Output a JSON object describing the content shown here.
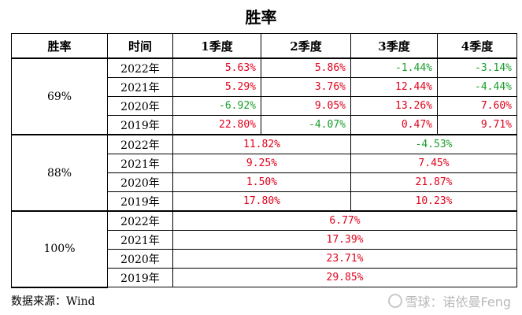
{
  "title": "胜率",
  "headers": [
    "胜率",
    "时间",
    "1季度",
    "2季度",
    "3季度",
    "4季度"
  ],
  "groups": [
    {
      "rate": "69%",
      "rows": [
        {
          "year": "2022年",
          "q": [
            "5.63%",
            "5.86%",
            "-1.44%",
            "-3.14%"
          ]
        },
        {
          "year": "2021年",
          "q": [
            "5.29%",
            "3.76%",
            "12.44%",
            "-4.44%"
          ]
        },
        {
          "year": "2020年",
          "q": [
            "-6.92%",
            "9.05%",
            "13.26%",
            "7.60%"
          ]
        },
        {
          "year": "2019年",
          "q": [
            "22.80%",
            "-4.07%",
            "0.47%",
            "9.71%"
          ]
        }
      ]
    },
    {
      "rate": "88%",
      "rows": [
        {
          "year": "2022年",
          "h": [
            "11.82%",
            "-4.53%"
          ]
        },
        {
          "year": "2021年",
          "h": [
            "9.25%",
            "7.45%"
          ]
        },
        {
          "year": "2020年",
          "h": [
            "1.50%",
            "21.87%"
          ]
        },
        {
          "year": "2019年",
          "h": [
            "17.80%",
            "10.23%"
          ]
        }
      ]
    },
    {
      "rate": "100%",
      "rows": [
        {
          "year": "2022年",
          "y": "6.77%"
        },
        {
          "year": "2021年",
          "y": "17.39%"
        },
        {
          "year": "2020年",
          "y": "23.71%"
        },
        {
          "year": "2019年",
          "y": "29.85%"
        }
      ]
    }
  ],
  "source": "数据来源：Wind",
  "watermark": "雪球：诺依曼Feng",
  "colors": {
    "positive": "#e0001b",
    "negative": "#1a9d2a"
  }
}
